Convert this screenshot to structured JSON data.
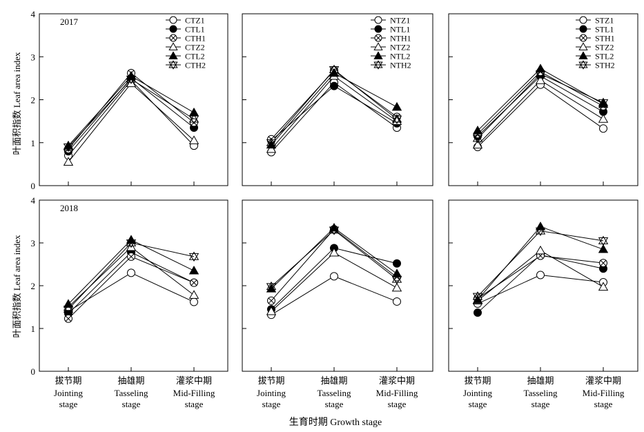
{
  "figure": {
    "y_label": "叶面积指数 Leaf area index",
    "x_label": "生育时期 Growth stage",
    "year_labels": [
      "2017",
      "2018"
    ],
    "stage_labels": [
      {
        "cn": "拔节期",
        "en1": "Jointing",
        "en2": "stage"
      },
      {
        "cn": "抽雄期",
        "en1": "Tasseling",
        "en2": "stage"
      },
      {
        "cn": "灌浆中期",
        "en1": "Mid-Filling",
        "en2": "stage"
      }
    ],
    "y_ticks": [
      "0",
      "1",
      "2",
      "3",
      "4"
    ],
    "colors": {
      "line": "#000000",
      "open_fill": "#ffffff",
      "filled": "#000000"
    }
  },
  "chart_data": [
    {
      "type": "line",
      "year": "2017",
      "group": "CT",
      "categories": [
        "拔节期 Jointing stage",
        "抽雄期 Tasseling stage",
        "灌浆中期 Mid-Filling stage"
      ],
      "ylim": [
        0,
        4
      ],
      "y_ticks": [
        0,
        1,
        2,
        3,
        4
      ],
      "legend": "top-right",
      "grid": false,
      "series": [
        {
          "name": "CTZ1",
          "marker": "circle-open",
          "values": [
            0.7,
            2.45,
            0.93
          ]
        },
        {
          "name": "CTL1",
          "marker": "circle-filled",
          "values": [
            0.8,
            2.5,
            1.35
          ]
        },
        {
          "name": "CTH1",
          "marker": "circle-x",
          "values": [
            0.85,
            2.62,
            1.47
          ]
        },
        {
          "name": "CTZ2",
          "marker": "triangle-open",
          "values": [
            0.55,
            2.38,
            1.05
          ]
        },
        {
          "name": "CTL2",
          "marker": "triangle-filled",
          "values": [
            0.93,
            2.55,
            1.7
          ]
        },
        {
          "name": "CTH2",
          "marker": "star",
          "values": [
            0.9,
            2.48,
            1.55
          ]
        }
      ]
    },
    {
      "type": "line",
      "year": "2017",
      "group": "NT",
      "categories": [
        "拔节期 Jointing stage",
        "抽雄期 Tasseling stage",
        "灌浆中期 Mid-Filling stage"
      ],
      "ylim": [
        0,
        4
      ],
      "y_ticks": [
        0,
        1,
        2,
        3,
        4
      ],
      "legend": "top-right",
      "grid": false,
      "series": [
        {
          "name": "NTZ1",
          "marker": "circle-open",
          "values": [
            0.78,
            2.4,
            1.35
          ]
        },
        {
          "name": "NTL1",
          "marker": "circle-filled",
          "values": [
            1.05,
            2.32,
            1.45
          ]
        },
        {
          "name": "NTH1",
          "marker": "circle-x",
          "values": [
            1.08,
            2.68,
            1.6
          ]
        },
        {
          "name": "NTZ2",
          "marker": "triangle-open",
          "values": [
            0.85,
            2.55,
            1.5
          ]
        },
        {
          "name": "NTL2",
          "marker": "triangle-filled",
          "values": [
            0.95,
            2.62,
            1.83
          ]
        },
        {
          "name": "NTH2",
          "marker": "star",
          "values": [
            1.0,
            2.7,
            1.55
          ]
        }
      ]
    },
    {
      "type": "line",
      "year": "2017",
      "group": "ST",
      "categories": [
        "拔节期 Jointing stage",
        "抽雄期 Tasseling stage",
        "灌浆中期 Mid-Filling stage"
      ],
      "ylim": [
        0,
        4
      ],
      "y_ticks": [
        0,
        1,
        2,
        3,
        4
      ],
      "legend": "top-right",
      "grid": false,
      "series": [
        {
          "name": "STZ1",
          "marker": "circle-open",
          "values": [
            0.9,
            2.35,
            1.33
          ]
        },
        {
          "name": "STL1",
          "marker": "circle-filled",
          "values": [
            1.15,
            2.55,
            1.72
          ]
        },
        {
          "name": "STH1",
          "marker": "circle-x",
          "values": [
            1.2,
            2.65,
            1.85
          ]
        },
        {
          "name": "STZ2",
          "marker": "triangle-open",
          "values": [
            0.95,
            2.45,
            1.55
          ]
        },
        {
          "name": "STL2",
          "marker": "triangle-filled",
          "values": [
            1.28,
            2.72,
            1.9
          ]
        },
        {
          "name": "STH2",
          "marker": "star",
          "values": [
            1.1,
            2.6,
            1.93
          ]
        }
      ]
    },
    {
      "type": "line",
      "year": "2018",
      "group": "CT",
      "categories": [
        "拔节期 Jointing stage",
        "抽雄期 Tasseling stage",
        "灌浆中期 Mid-Filling stage"
      ],
      "ylim": [
        0,
        4
      ],
      "y_ticks": [
        0,
        1,
        2,
        3,
        4
      ],
      "grid": false,
      "series": [
        {
          "name": "CTZ1",
          "marker": "circle-open",
          "values": [
            1.4,
            2.3,
            1.62
          ]
        },
        {
          "name": "CTL1",
          "marker": "circle-filled",
          "values": [
            1.35,
            2.78,
            2.07
          ]
        },
        {
          "name": "CTH1",
          "marker": "circle-x",
          "values": [
            1.23,
            2.68,
            2.07
          ]
        },
        {
          "name": "CTZ2",
          "marker": "triangle-open",
          "values": [
            1.5,
            2.9,
            1.78
          ]
        },
        {
          "name": "CTL2",
          "marker": "triangle-filled",
          "values": [
            1.57,
            3.07,
            2.35
          ]
        },
        {
          "name": "CTH2",
          "marker": "star",
          "values": [
            1.45,
            3.0,
            2.68
          ]
        }
      ]
    },
    {
      "type": "line",
      "year": "2018",
      "group": "NT",
      "categories": [
        "拔节期 Jointing stage",
        "抽雄期 Tasseling stage",
        "灌浆中期 Mid-Filling stage"
      ],
      "ylim": [
        0,
        4
      ],
      "y_ticks": [
        0,
        1,
        2,
        3,
        4
      ],
      "grid": false,
      "series": [
        {
          "name": "NTZ1",
          "marker": "circle-open",
          "values": [
            1.32,
            2.22,
            1.63
          ]
        },
        {
          "name": "NTL1",
          "marker": "circle-filled",
          "values": [
            1.45,
            2.88,
            2.52
          ]
        },
        {
          "name": "NTH1",
          "marker": "circle-x",
          "values": [
            1.65,
            3.32,
            2.2
          ]
        },
        {
          "name": "NTZ2",
          "marker": "triangle-open",
          "values": [
            1.4,
            2.77,
            1.95
          ]
        },
        {
          "name": "NTL2",
          "marker": "triangle-filled",
          "values": [
            1.93,
            3.35,
            2.28
          ]
        },
        {
          "name": "NTH2",
          "marker": "star",
          "values": [
            1.98,
            3.3,
            2.15
          ]
        }
      ]
    },
    {
      "type": "line",
      "year": "2018",
      "group": "ST",
      "categories": [
        "拔节期 Jointing stage",
        "抽雄期 Tasseling stage",
        "灌浆中期 Mid-Filling stage"
      ],
      "ylim": [
        0,
        4
      ],
      "y_ticks": [
        0,
        1,
        2,
        3,
        4
      ],
      "grid": false,
      "series": [
        {
          "name": "STZ1",
          "marker": "circle-open",
          "values": [
            1.58,
            2.25,
            2.08
          ]
        },
        {
          "name": "STL1",
          "marker": "circle-filled",
          "values": [
            1.37,
            2.72,
            2.4
          ]
        },
        {
          "name": "STH1",
          "marker": "circle-x",
          "values": [
            1.7,
            2.7,
            2.53
          ]
        },
        {
          "name": "STZ2",
          "marker": "triangle-open",
          "values": [
            1.65,
            2.82,
            1.97
          ]
        },
        {
          "name": "STL2",
          "marker": "triangle-filled",
          "values": [
            1.67,
            3.38,
            2.85
          ]
        },
        {
          "name": "STH2",
          "marker": "star",
          "values": [
            1.75,
            3.28,
            3.05
          ]
        }
      ]
    }
  ]
}
